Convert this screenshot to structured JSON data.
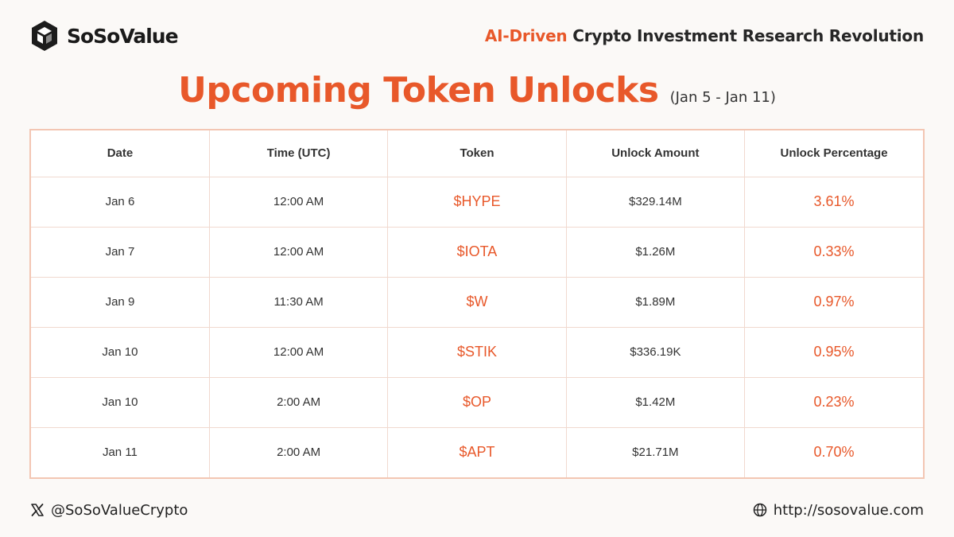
{
  "header": {
    "brand_name": "SoSoValue",
    "tagline_accent": "AI-Driven",
    "tagline_rest": " Crypto Investment Research Revolution"
  },
  "title": {
    "main": "Upcoming Token Unlocks",
    "range": "(Jan 5 - Jan 11)"
  },
  "table": {
    "columns": [
      "Date",
      "Time (UTC)",
      "Token",
      "Unlock Amount",
      "Unlock Percentage"
    ],
    "rows": [
      {
        "date": "Jan 6",
        "time": "12:00 AM",
        "token": "$HYPE",
        "amount": "$329.14M",
        "pct": "3.61%"
      },
      {
        "date": "Jan 7",
        "time": "12:00 AM",
        "token": "$IOTA",
        "amount": "$1.26M",
        "pct": "0.33%"
      },
      {
        "date": "Jan 9",
        "time": "11:30 AM",
        "token": "$W",
        "amount": "$1.89M",
        "pct": "0.97%"
      },
      {
        "date": "Jan 10",
        "time": "12:00 AM",
        "token": "$STIK",
        "amount": "$336.19K",
        "pct": "0.95%"
      },
      {
        "date": "Jan 10",
        "time": "2:00 AM",
        "token": "$OP",
        "amount": "$1.42M",
        "pct": "0.23%"
      },
      {
        "date": "Jan 11",
        "time": "2:00 AM",
        "token": "$APT",
        "amount": "$21.71M",
        "pct": "0.70%"
      }
    ]
  },
  "footer": {
    "x_handle": "@SoSoValueCrypto",
    "website": "http://sosovalue.com",
    "x_icon": "x-logo-icon",
    "globe_icon": "globe-icon"
  },
  "colors": {
    "accent": "#e8582a",
    "border": "#f3c6b3",
    "background": "#fbf9f7"
  }
}
